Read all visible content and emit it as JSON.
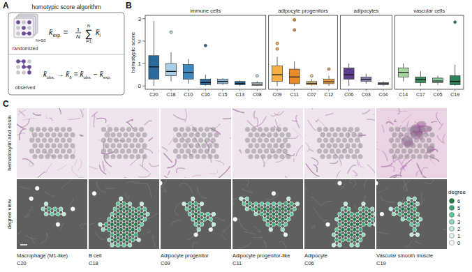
{
  "panel_labels": [
    "A",
    "B",
    "C"
  ],
  "panel_a": {
    "title": "homotypic score algorithm",
    "randomized": {
      "label": "randomized",
      "n_label": "N=50",
      "formula": {
        "lhs": {
          "t": "k̄",
          "sub": "exp."
        },
        "eq": "=",
        "frac": [
          "1",
          "N"
        ],
        "sum": {
          "sym": "∑",
          "top": "N",
          "bottom": "i=1"
        },
        "term": {
          "t": "k̄",
          "sub": "i"
        }
      }
    },
    "observed": {
      "label": "observed",
      "formula": [
        {
          "t": "k̄",
          "sub": "obs."
        },
        {
          "t": "→"
        },
        {
          "t": "k̄",
          "sub": "δ"
        },
        {
          "t": "="
        },
        {
          "t": "k̄",
          "sub": "obs."
        },
        {
          "t": "−"
        },
        {
          "t": "k̄",
          "sub": "exp."
        }
      ]
    }
  },
  "chart_data": {
    "type": "box",
    "y_label": "homotypic score",
    "ylim": [
      -0.15,
      3.15
    ],
    "yticks": [
      0,
      1,
      2,
      3
    ],
    "facets": [
      {
        "title": "immune cells",
        "categories": [
          "C20",
          "C18",
          "C10",
          "C16",
          "C15",
          "C13",
          "C08"
        ],
        "colors": [
          "#2a6b9c",
          "#a8cde6",
          "#3f88c0",
          "#2e6a98",
          "#8fbcdc",
          "#336fa0",
          "#bcd8ec"
        ],
        "boxes": [
          {
            "min": 0,
            "q1": 0.3,
            "median": 0.85,
            "q3": 1.35,
            "max": 2.9,
            "outliers": []
          },
          {
            "min": 0.2,
            "q1": 0.45,
            "median": 0.65,
            "q3": 1.0,
            "max": 1.5,
            "outliers": [
              2.4
            ]
          },
          {
            "min": 0.1,
            "q1": 0.3,
            "median": 0.6,
            "q3": 0.95,
            "max": 1.2,
            "outliers": []
          },
          {
            "min": 0,
            "q1": 0.05,
            "median": 0.15,
            "q3": 0.3,
            "max": 0.5,
            "outliers": [
              1.8
            ]
          },
          {
            "min": 0.05,
            "q1": 0.1,
            "median": 0.2,
            "q3": 0.3,
            "max": 0.35,
            "outliers": []
          },
          {
            "min": 0,
            "q1": 0.05,
            "median": 0.12,
            "q3": 0.2,
            "max": 0.25,
            "outliers": []
          },
          {
            "min": 0,
            "q1": 0.02,
            "median": 0.08,
            "q3": 0.15,
            "max": 0.2,
            "outliers": [
              0.45
            ]
          }
        ]
      },
      {
        "title": "adipocyte progenitors",
        "categories": [
          "C09",
          "C11",
          "C07",
          "C12"
        ],
        "colors": [
          "#f5b041",
          "#e8892a",
          "#f8cd8a",
          "#eda14a"
        ],
        "boxes": [
          {
            "min": 0,
            "q1": 0.2,
            "median": 0.5,
            "q3": 0.9,
            "max": 1.3,
            "outliers": [
              1.65,
              1.9
            ]
          },
          {
            "min": 0,
            "q1": 0.1,
            "median": 0.4,
            "q3": 0.75,
            "max": 1.1,
            "outliers": [
              2.5,
              2.95
            ]
          },
          {
            "min": 0,
            "q1": 0.05,
            "median": 0.12,
            "q3": 0.2,
            "max": 0.3,
            "outliers": [
              0.45
            ]
          },
          {
            "min": 0,
            "q1": 0.1,
            "median": 0.18,
            "q3": 0.3,
            "max": 0.45,
            "outliers": [
              0.75
            ]
          }
        ]
      },
      {
        "title": "adipocytes",
        "categories": [
          "C06",
          "C03",
          "C04"
        ],
        "colors": [
          "#5e3f8f",
          "#8c78b0",
          "#b9a9d3"
        ],
        "boxes": [
          {
            "min": 0,
            "q1": 0.3,
            "median": 0.5,
            "q3": 0.8,
            "max": 1.0,
            "outliers": []
          },
          {
            "min": 0.1,
            "q1": 0.2,
            "median": 0.3,
            "q3": 0.4,
            "max": 0.55,
            "outliers": []
          },
          {
            "min": 0,
            "q1": 0.05,
            "median": 0.1,
            "q3": 0.15,
            "max": 0.2,
            "outliers": []
          }
        ]
      },
      {
        "title": "vascular cells",
        "categories": [
          "C14",
          "C17",
          "C05",
          "C19"
        ],
        "colors": [
          "#a5d6a0",
          "#3e8f5f",
          "#8fcb9a",
          "#2f8058"
        ],
        "boxes": [
          {
            "min": 0.2,
            "q1": 0.4,
            "median": 0.6,
            "q3": 0.8,
            "max": 1.0,
            "outliers": []
          },
          {
            "min": 0,
            "q1": 0.15,
            "median": 0.28,
            "q3": 0.4,
            "max": 0.65,
            "outliers": []
          },
          {
            "min": 0.05,
            "q1": 0.15,
            "median": 0.22,
            "q3": 0.35,
            "max": 0.45,
            "outliers": []
          },
          {
            "min": 0,
            "q1": 0.05,
            "median": 0.2,
            "q3": 0.45,
            "max": 0.95,
            "outliers": [
              2.85
            ]
          }
        ]
      }
    ]
  },
  "panel_c": {
    "row_labels": [
      "hematoxylin and eosin",
      "degree view"
    ],
    "panels": [
      {
        "cell_type": "Macrophage (M1-like)",
        "cluster": "C20"
      },
      {
        "cell_type": "B cell",
        "cluster": "C18"
      },
      {
        "cell_type": "Adipocyte progenitor",
        "cluster": "C09"
      },
      {
        "cell_type": "Adipocyte progenitor-like",
        "cluster": "C11"
      },
      {
        "cell_type": "Adipocyte",
        "cluster": "C06"
      },
      {
        "cell_type": "Vascular smooth muscle",
        "cluster": "C19"
      }
    ],
    "legend": {
      "title": "degree",
      "levels": [
        6,
        5,
        4,
        3,
        2,
        1,
        0
      ],
      "colors": [
        "#1f7a4a",
        "#3aa876",
        "#5cc49a",
        "#8fd8bb",
        "#c0eadb",
        "#e6f6ef",
        "#ffffff"
      ]
    }
  }
}
